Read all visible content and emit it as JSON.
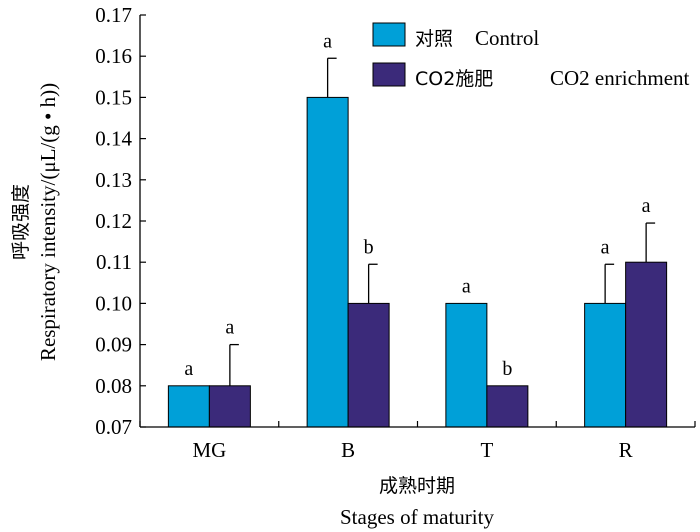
{
  "chart_data": {
    "type": "bar",
    "categories": [
      "MG",
      "B",
      "T",
      "R"
    ],
    "series": [
      {
        "name": "对照 Control",
        "name_cn": "对照",
        "name_en": "Control",
        "color": "#00A0D8",
        "values": [
          0.08,
          0.15,
          0.1,
          0.1
        ],
        "errors": [
          0.0,
          0.0095,
          0.0,
          0.0095
        ],
        "letters": [
          "a",
          "a",
          "a",
          "a"
        ]
      },
      {
        "name": "CO2施肥 CO2 enrichment",
        "name_cn": "CO2施肥",
        "name_en": "CO2 enrichment",
        "color": "#3B2A7A",
        "values": [
          0.08,
          0.1,
          0.08,
          0.11
        ],
        "errors": [
          0.01,
          0.0095,
          0.0,
          0.0095
        ],
        "letters": [
          "a",
          "b",
          "b",
          "a"
        ]
      }
    ],
    "ylim": [
      0.07,
      0.17
    ],
    "yticks": [
      "0.07",
      "0.08",
      "0.09",
      "0.10",
      "0.11",
      "0.12",
      "0.13",
      "0.14",
      "0.15",
      "0.16",
      "0.17"
    ],
    "ylabel_cn": "呼吸强度",
    "ylabel_en": "Respiratory intensity/(μL/(g • h))",
    "xlabel_cn": "成熟时期",
    "xlabel_en": "Stages of maturity",
    "legend_position": "top-right",
    "grid": false
  }
}
